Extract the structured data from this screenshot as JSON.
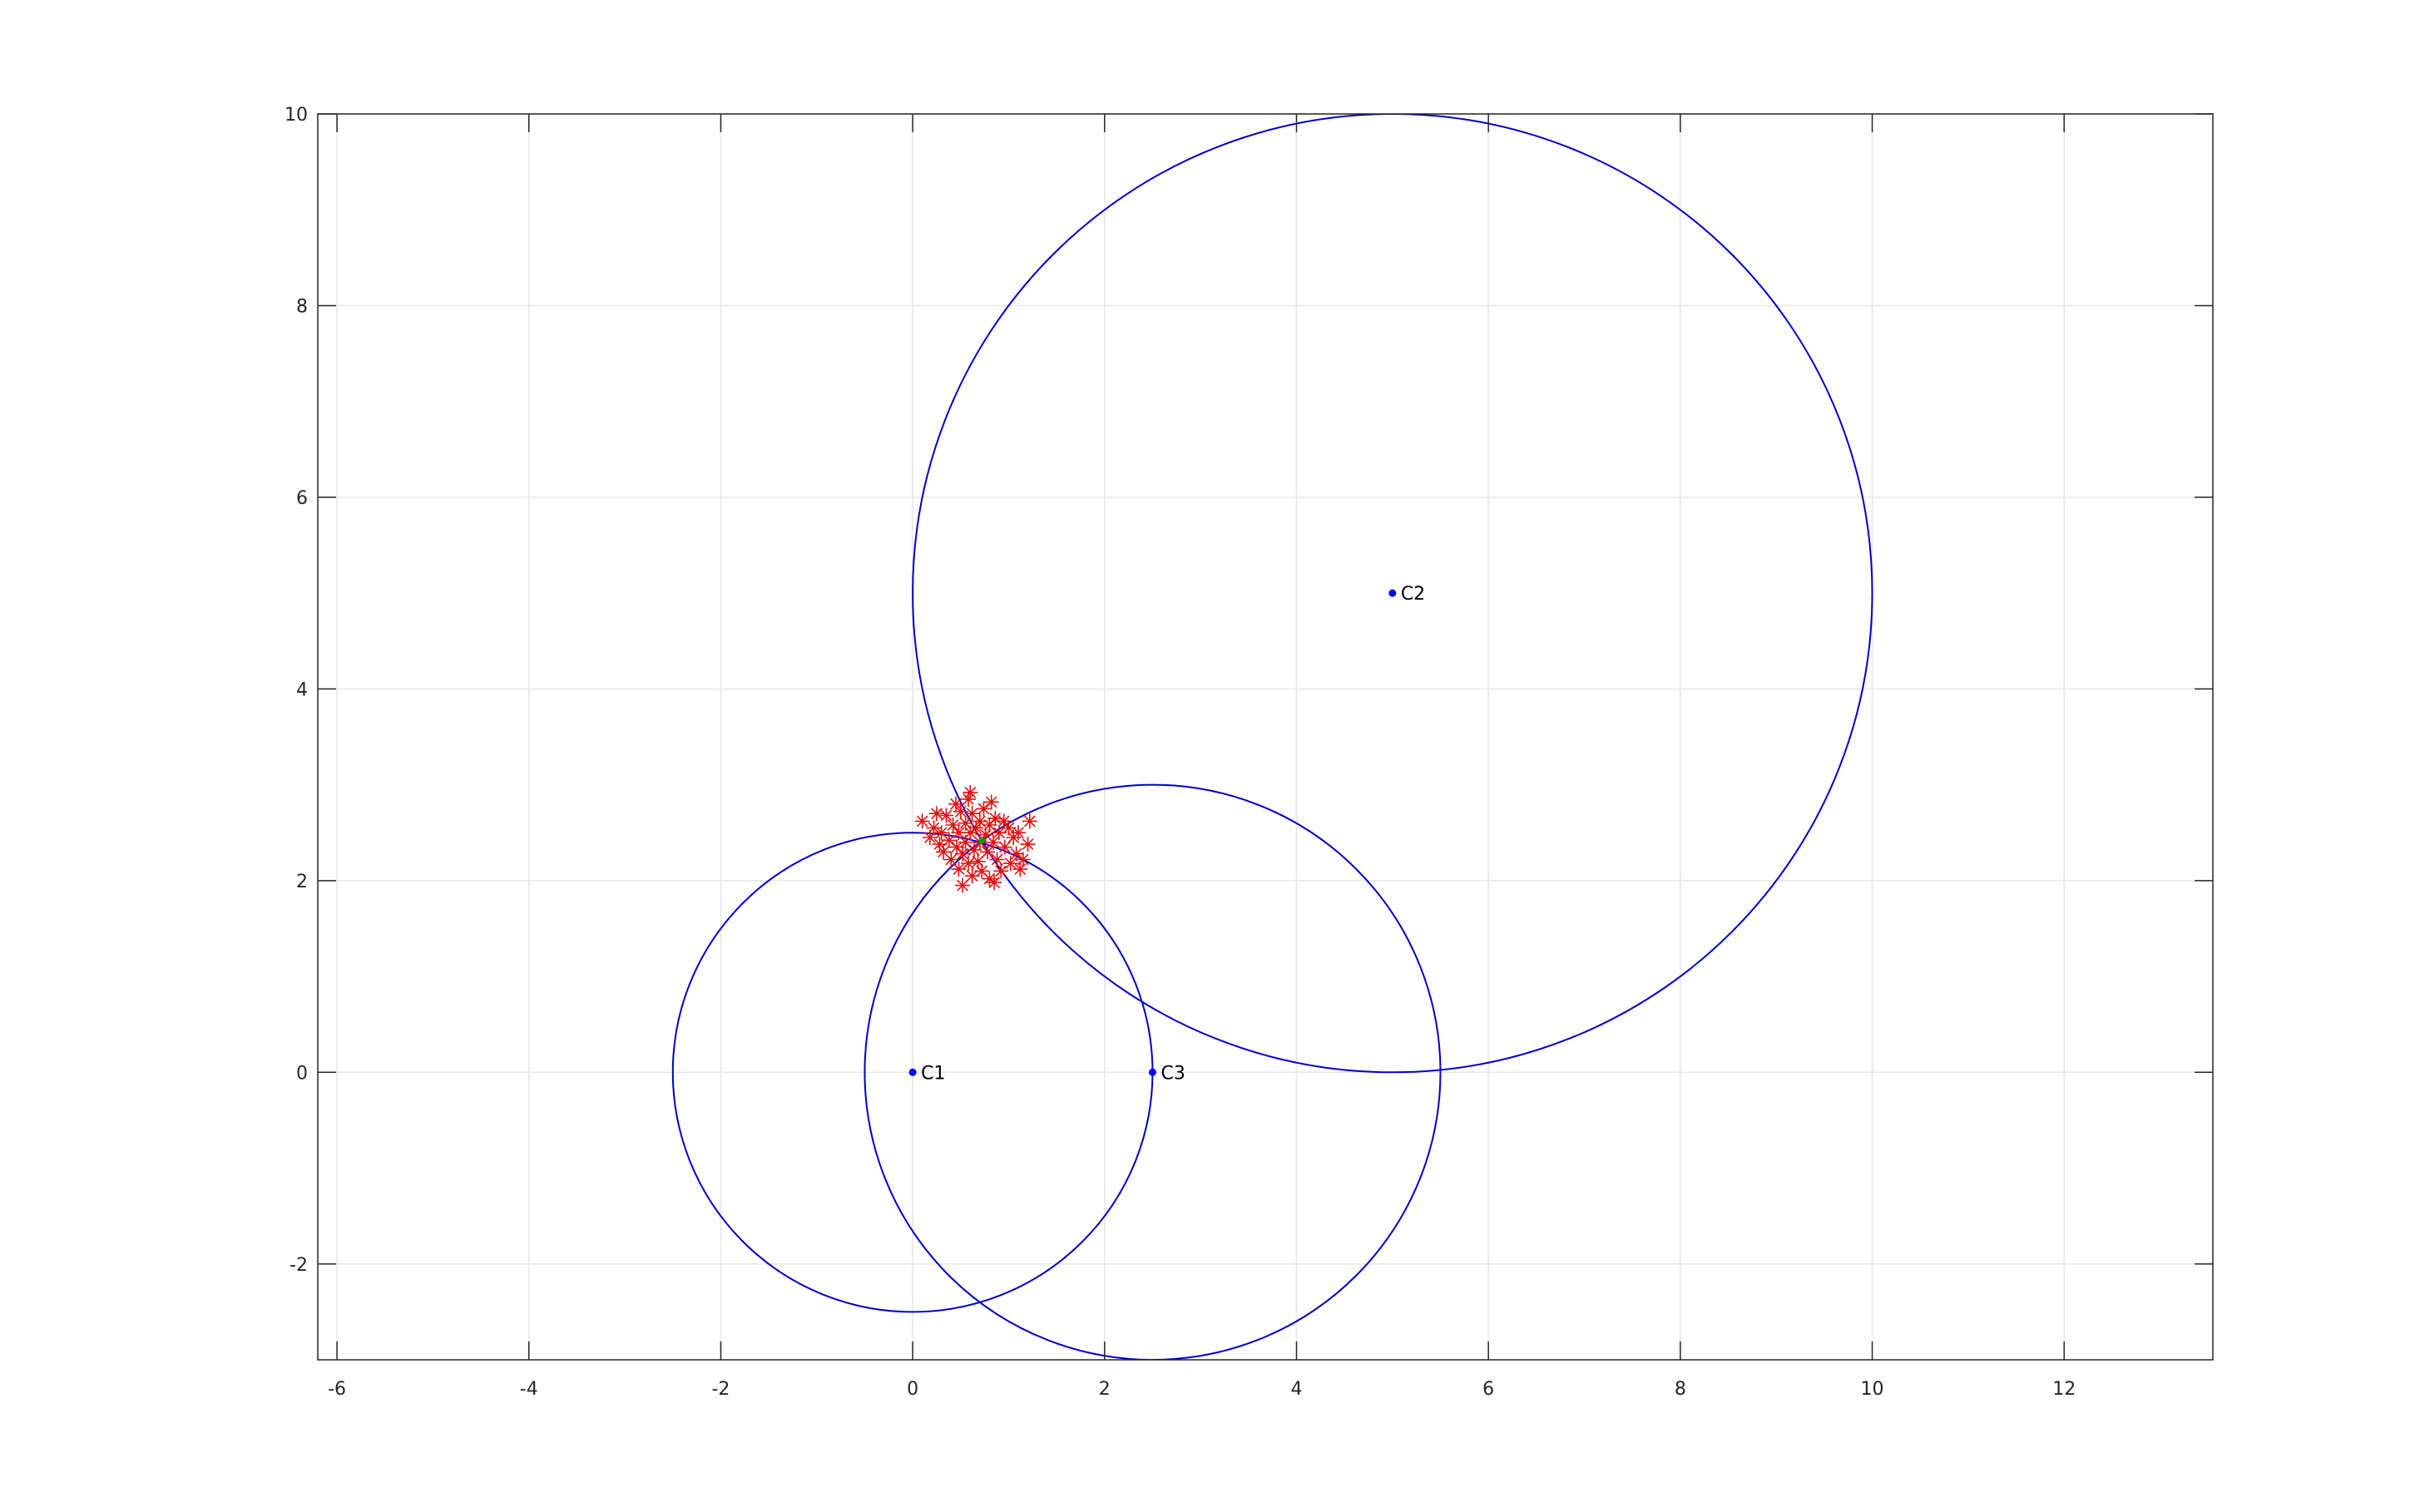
{
  "chart_data": {
    "type": "scatter",
    "title": "",
    "xlabel": "",
    "ylabel": "",
    "xlim": [
      -6.2,
      13.55
    ],
    "ylim": [
      -3,
      10
    ],
    "grid": true,
    "box": true,
    "x_ticks": [
      -6,
      -4,
      -2,
      0,
      2,
      4,
      6,
      8,
      10,
      12
    ],
    "y_ticks": [
      -2,
      0,
      2,
      4,
      6,
      8,
      10
    ],
    "x_tick_labels": [
      "-6",
      "-4",
      "-2",
      "0",
      "2",
      "4",
      "6",
      "8",
      "10",
      "12"
    ],
    "y_tick_labels": [
      "-2",
      "0",
      "2",
      "4",
      "6",
      "8",
      "10"
    ],
    "colors": {
      "circle": "#0000c8",
      "center_marker": "#0000ff",
      "noise_marker": "#e01010",
      "estimate_marker": "#00a000",
      "grid": "#e6e6e6",
      "axis": "#262626"
    },
    "circles": [
      {
        "label": "C1",
        "cx": 0,
        "cy": 0,
        "r": 2.5
      },
      {
        "label": "C2",
        "cx": 5,
        "cy": 5,
        "r": 5
      },
      {
        "label": "C3",
        "cx": 2.5,
        "cy": 0,
        "r": 3
      }
    ],
    "estimate": {
      "x": 0.72,
      "y": 2.42
    },
    "noisy_points": [
      [
        0.1,
        2.62
      ],
      [
        0.18,
        2.45
      ],
      [
        0.22,
        2.55
      ],
      [
        0.28,
        2.38
      ],
      [
        0.3,
        2.5
      ],
      [
        0.32,
        2.3
      ],
      [
        0.35,
        2.68
      ],
      [
        0.38,
        2.42
      ],
      [
        0.4,
        2.22
      ],
      [
        0.42,
        2.58
      ],
      [
        0.45,
        2.8
      ],
      [
        0.46,
        2.35
      ],
      [
        0.48,
        2.12
      ],
      [
        0.48,
        2.5
      ],
      [
        0.5,
        2.72
      ],
      [
        0.52,
        2.28
      ],
      [
        0.52,
        1.95
      ],
      [
        0.55,
        2.6
      ],
      [
        0.55,
        2.4
      ],
      [
        0.58,
        2.18
      ],
      [
        0.58,
        2.85
      ],
      [
        0.6,
        2.5
      ],
      [
        0.62,
        2.05
      ],
      [
        0.62,
        2.7
      ],
      [
        0.64,
        2.32
      ],
      [
        0.66,
        2.55
      ],
      [
        0.68,
        2.2
      ],
      [
        0.7,
        2.62
      ],
      [
        0.7,
        2.4
      ],
      [
        0.72,
        2.1
      ],
      [
        0.74,
        2.75
      ],
      [
        0.76,
        2.48
      ],
      [
        0.78,
        2.3
      ],
      [
        0.8,
        2.58
      ],
      [
        0.8,
        2.02
      ],
      [
        0.82,
        2.82
      ],
      [
        0.84,
        2.4
      ],
      [
        0.86,
        2.65
      ],
      [
        0.88,
        2.22
      ],
      [
        0.9,
        2.5
      ],
      [
        0.92,
        2.1
      ],
      [
        0.95,
        2.62
      ],
      [
        0.96,
        2.35
      ],
      [
        1.0,
        2.55
      ],
      [
        1.02,
        2.18
      ],
      [
        1.05,
        2.45
      ],
      [
        1.08,
        2.28
      ],
      [
        1.1,
        2.5
      ],
      [
        1.15,
        2.22
      ],
      [
        1.2,
        2.38
      ],
      [
        1.22,
        2.62
      ],
      [
        0.25,
        2.7
      ],
      [
        0.6,
        2.92
      ],
      [
        0.85,
        1.98
      ],
      [
        1.12,
        2.12
      ]
    ],
    "point_labels": [
      "C1",
      "C2",
      "C3"
    ]
  }
}
